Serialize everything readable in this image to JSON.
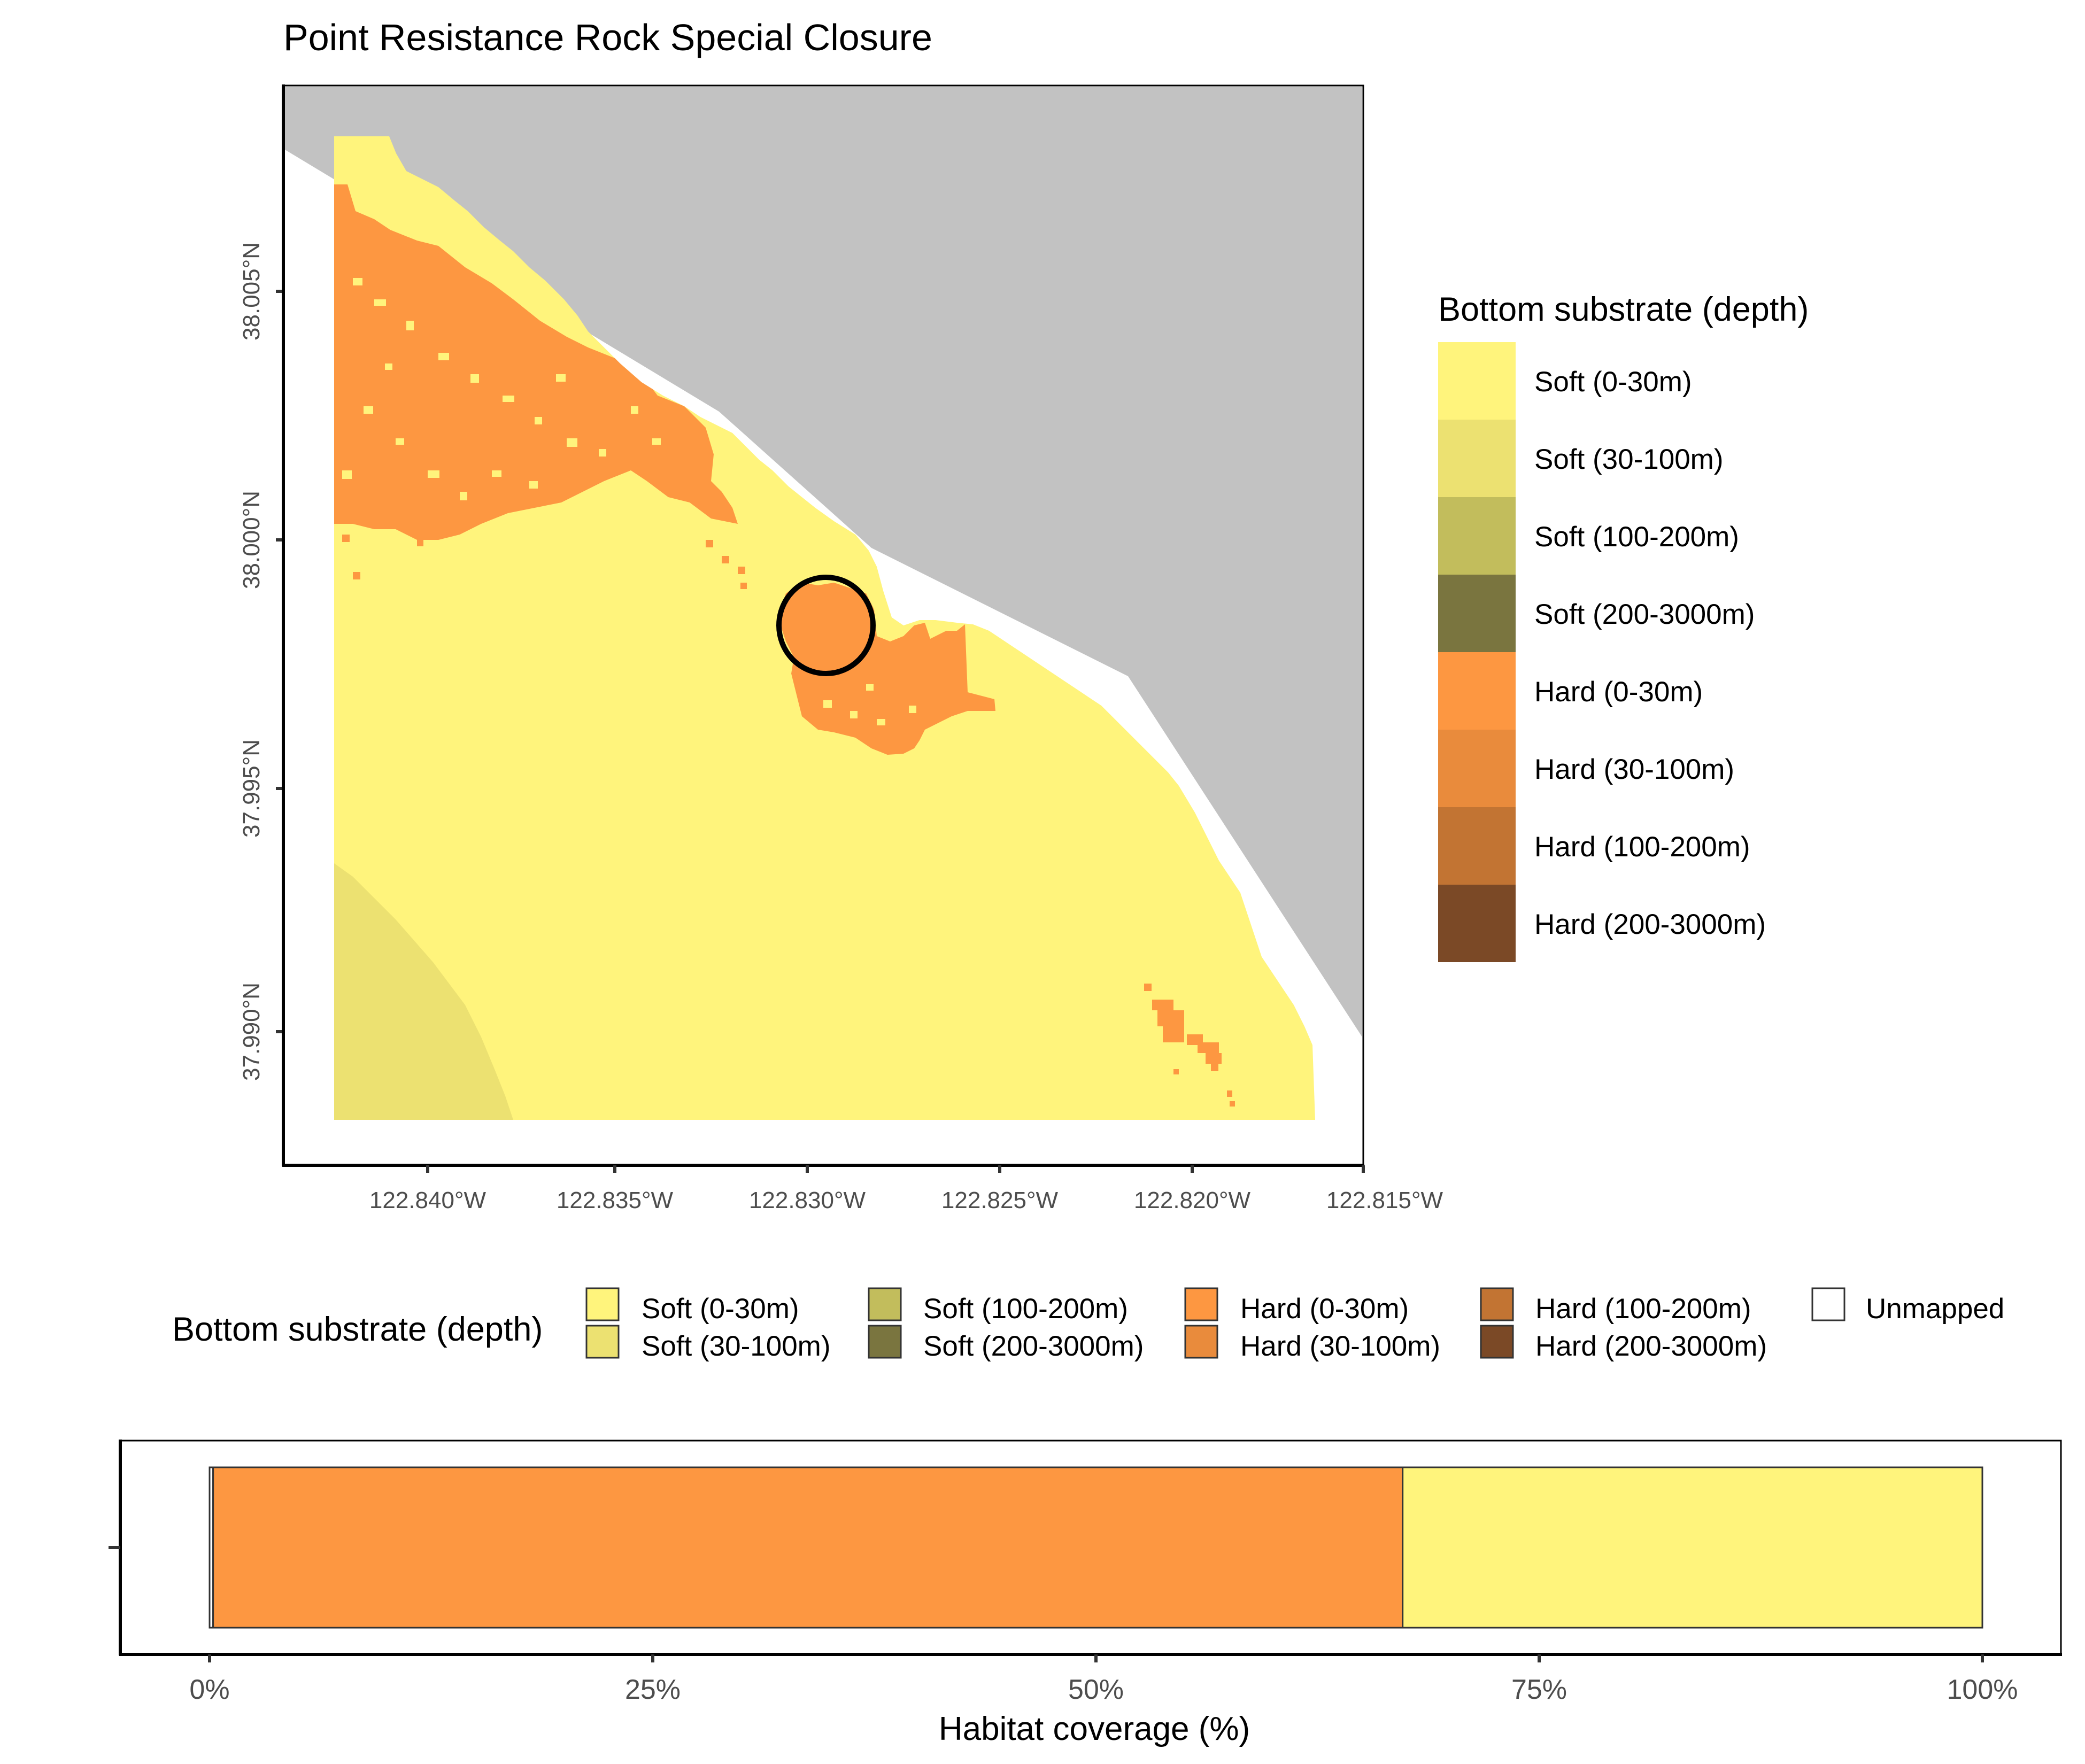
{
  "title": "Point Resistance Rock Special Closure",
  "map": {
    "lat_ticks": [
      "38.005°N",
      "38.000°N",
      "37.995°N",
      "37.990°N"
    ],
    "lon_ticks": [
      "122.840°W",
      "122.835°W",
      "122.830°W",
      "122.825°W",
      "122.820°W",
      "122.815°W"
    ],
    "lon_range": [
      -122.8425,
      -122.815
    ],
    "lat_range": [
      37.9875,
      38.0095
    ],
    "colors": {
      "land": "#c2c2c2",
      "soft_0_30": "#fff47c",
      "soft_30_100": "#ece171",
      "hard_0_30": "#fd9741",
      "highlight_ring": "#000000"
    }
  },
  "right_legend": {
    "title": "Bottom substrate (depth)",
    "items": [
      {
        "label": "Soft (0-30m)",
        "color": "#fff47c"
      },
      {
        "label": "Soft (30-100m)",
        "color": "#ece171"
      },
      {
        "label": "Soft (100-200m)",
        "color": "#c2bd5c"
      },
      {
        "label": "Soft (200-3000m)",
        "color": "#7a753f"
      },
      {
        "label": "Hard (0-30m)",
        "color": "#fd9741"
      },
      {
        "label": "Hard (30-100m)",
        "color": "#e98b3c"
      },
      {
        "label": "Hard (100-200m)",
        "color": "#c27433"
      },
      {
        "label": "Hard (200-3000m)",
        "color": "#7b4926"
      }
    ]
  },
  "bottom_legend": {
    "title": "Bottom substrate (depth)",
    "items": [
      {
        "label": "Soft (0-30m)",
        "color": "#fff47c"
      },
      {
        "label": "Soft (30-100m)",
        "color": "#ece171"
      },
      {
        "label": "Soft (100-200m)",
        "color": "#c2bd5c"
      },
      {
        "label": "Soft (200-3000m)",
        "color": "#7a753f"
      },
      {
        "label": "Hard (0-30m)",
        "color": "#fd9741"
      },
      {
        "label": "Hard (30-100m)",
        "color": "#e98b3c"
      },
      {
        "label": "Hard (100-200m)",
        "color": "#c27433"
      },
      {
        "label": "Hard (200-3000m)",
        "color": "#7b4926"
      },
      {
        "label": "Unmapped",
        "color": "#ffffff"
      }
    ]
  },
  "chart_data": {
    "type": "bar",
    "orientation": "horizontal",
    "stacked": true,
    "xlabel": "Habitat coverage (%)",
    "ylabel": "",
    "xlim": [
      0,
      100
    ],
    "x_ticks": [
      "0%",
      "25%",
      "50%",
      "75%",
      "100%"
    ],
    "series": [
      {
        "name": "Unmapped",
        "value": 0.2,
        "color": "#ffffff"
      },
      {
        "name": "Hard (0-30m)",
        "value": 67.1,
        "color": "#fd9741"
      },
      {
        "name": "Soft (0-30m)",
        "value": 32.7,
        "color": "#fff47c"
      }
    ]
  }
}
